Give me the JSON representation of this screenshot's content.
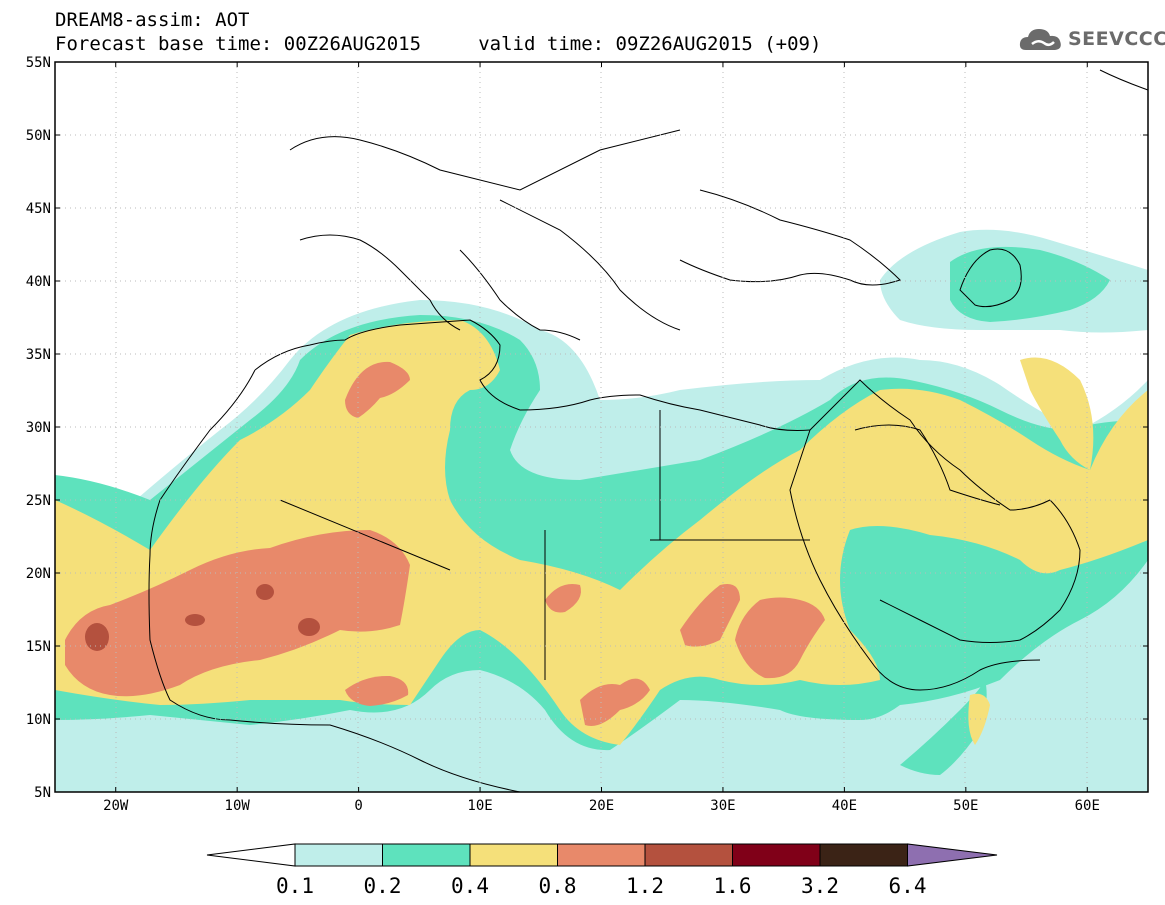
{
  "header": {
    "title_line1": "DREAM8-assim: AOT",
    "title_line2": "Forecast base time: 00Z26AUG2015     valid time: 09Z26AUG2015 (+09)",
    "logo_text": "SEEVCCC"
  },
  "map": {
    "lon_range": [
      -25,
      65
    ],
    "lat_range": [
      5,
      55
    ],
    "lat_ticks": [
      55,
      50,
      45,
      40,
      35,
      30,
      25,
      20,
      15,
      10,
      5
    ],
    "lat_labels": [
      "55N",
      "50N",
      "45N",
      "40N",
      "35N",
      "30N",
      "25N",
      "20N",
      "15N",
      "10N",
      "5N"
    ],
    "lon_ticks": [
      -20,
      -10,
      0,
      10,
      20,
      30,
      40,
      50,
      60
    ],
    "lon_labels": [
      "20W",
      "10W",
      "0",
      "10E",
      "20E",
      "30E",
      "40E",
      "50E",
      "60E"
    ],
    "background_color": "#ffffff",
    "coast_color": "#000000"
  },
  "colorbar": {
    "levels": [
      "0.1",
      "0.2",
      "0.4",
      "0.8",
      "1.2",
      "1.6",
      "3.2",
      "6.4"
    ],
    "colors": [
      "#bfeeea",
      "#5ee2bd",
      "#f5e07a",
      "#e8896a",
      "#b4513e",
      "#800018",
      "#3b2316"
    ],
    "under_color": "#ffffff",
    "over_color": "#8e6fb0"
  }
}
